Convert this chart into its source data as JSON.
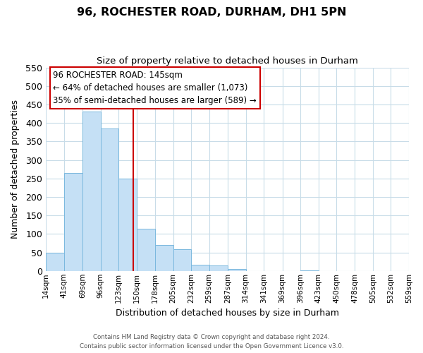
{
  "title": "96, ROCHESTER ROAD, DURHAM, DH1 5PN",
  "subtitle": "Size of property relative to detached houses in Durham",
  "xlabel": "Distribution of detached houses by size in Durham",
  "ylabel": "Number of detached properties",
  "bin_labels": [
    "14sqm",
    "41sqm",
    "69sqm",
    "96sqm",
    "123sqm",
    "150sqm",
    "178sqm",
    "205sqm",
    "232sqm",
    "259sqm",
    "287sqm",
    "314sqm",
    "341sqm",
    "369sqm",
    "396sqm",
    "423sqm",
    "450sqm",
    "478sqm",
    "505sqm",
    "532sqm",
    "559sqm"
  ],
  "bin_edges": [
    14,
    41,
    69,
    96,
    123,
    150,
    178,
    205,
    232,
    259,
    287,
    314,
    341,
    369,
    396,
    423,
    450,
    478,
    505,
    532,
    559
  ],
  "bar_heights": [
    50,
    265,
    430,
    385,
    250,
    115,
    70,
    58,
    17,
    14,
    6,
    0,
    0,
    0,
    1,
    0,
    0,
    0,
    0,
    0
  ],
  "bar_color": "#c5e0f5",
  "bar_edge_color": "#7ab8de",
  "property_line_x": 145,
  "property_line_color": "#cc0000",
  "ylim": [
    0,
    550
  ],
  "ann_line1": "96 ROCHESTER ROAD: 145sqm",
  "ann_line2": "← 64% of detached houses are smaller (1,073)",
  "ann_line3": "35% of semi-detached houses are larger (589) →",
  "annotation_box_color": "#ffffff",
  "annotation_box_edge": "#cc0000",
  "footer_line1": "Contains HM Land Registry data © Crown copyright and database right 2024.",
  "footer_line2": "Contains public sector information licensed under the Open Government Licence v3.0.",
  "bg_color": "#ffffff",
  "grid_color": "#c8dce8"
}
